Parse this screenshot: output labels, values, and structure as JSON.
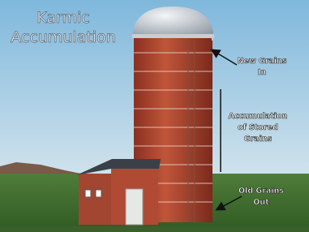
{
  "title_lines": [
    "Karmic",
    "Accumulation"
  ],
  "labels": [
    {
      "lines": [
        "New Grains",
        "In"
      ]
    },
    {
      "lines": [
        "Accumulation",
        "of Stored",
        "Grains"
      ]
    },
    {
      "lines": [
        "Old Grains",
        "Out"
      ]
    }
  ]
}
